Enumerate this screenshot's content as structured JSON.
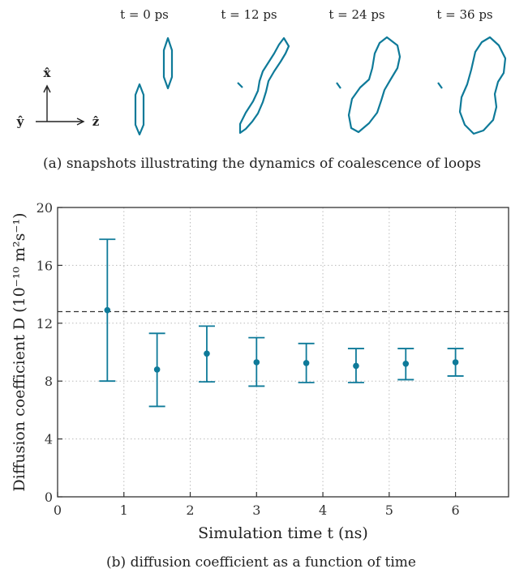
{
  "snapshots": {
    "times": [
      "t = 0 ps",
      "t = 12 ps",
      "t = 24 ps",
      "t = 36 ps"
    ],
    "axes": {
      "x": "x̂",
      "y": "ŷ",
      "z": "ẑ"
    },
    "caption": "(a) snapshots illustrating the dynamics of coalescence of loops",
    "loop_color": "#0e7a99"
  },
  "chart_data": {
    "type": "scatter",
    "title": "",
    "caption": "(b) diffusion coefficient as a function of time",
    "xlabel": "Simulation time t (ns)",
    "ylabel": "Diffusion coefficient D (10⁻¹⁰ m²s⁻¹)",
    "xlim": [
      0,
      6.8
    ],
    "ylim": [
      0,
      20
    ],
    "xticks": [
      0,
      1,
      2,
      3,
      4,
      5,
      6
    ],
    "yticks": [
      0,
      4,
      8,
      12,
      16,
      20
    ],
    "grid": true,
    "reference_line": 12.8,
    "series": [
      {
        "color": "#0e7a99",
        "points": [
          {
            "x": 0.75,
            "y": 12.9,
            "low": 8.0,
            "high": 17.8
          },
          {
            "x": 1.5,
            "y": 8.8,
            "low": 6.25,
            "high": 11.3
          },
          {
            "x": 2.25,
            "y": 9.9,
            "low": 7.95,
            "high": 11.8
          },
          {
            "x": 3.0,
            "y": 9.3,
            "low": 7.65,
            "high": 11.0
          },
          {
            "x": 3.75,
            "y": 9.25,
            "low": 7.9,
            "high": 10.6
          },
          {
            "x": 4.5,
            "y": 9.05,
            "low": 7.9,
            "high": 10.25
          },
          {
            "x": 5.25,
            "y": 9.2,
            "low": 8.1,
            "high": 10.25
          },
          {
            "x": 6.0,
            "y": 9.3,
            "low": 8.35,
            "high": 10.25
          }
        ]
      }
    ]
  }
}
